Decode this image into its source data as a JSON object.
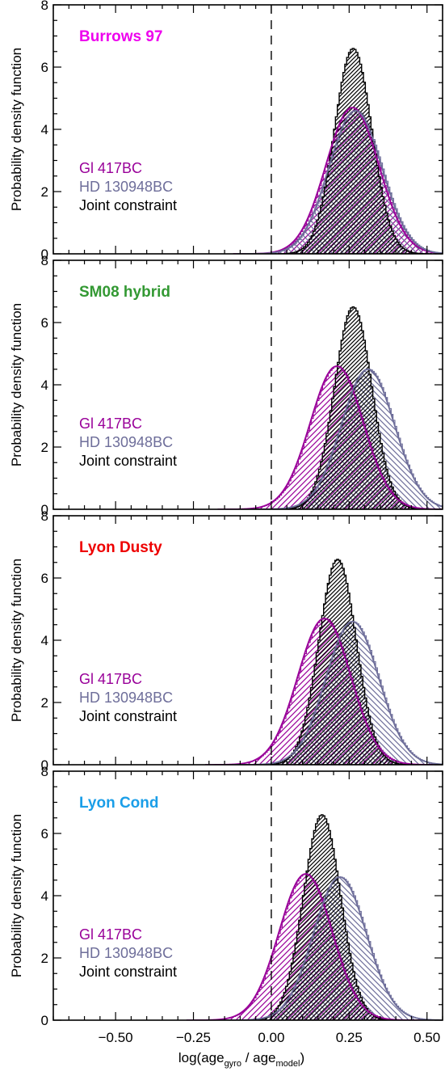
{
  "chart_data": {
    "type": "area",
    "ylabel": "Probability density function",
    "xlabel": {
      "prefix": "log(age",
      "sub1": "gyro",
      "middle": " / age",
      "sub2": "model",
      "suffix": ")"
    },
    "xlim": [
      -0.7,
      0.55
    ],
    "ylim": [
      0,
      8
    ],
    "xticks": [
      -0.5,
      -0.25,
      0.0,
      0.25,
      0.5
    ],
    "xtick_labels": [
      "−0.50",
      "−0.25",
      "0.00",
      "0.25",
      "0.50"
    ],
    "yticks": [
      0,
      2,
      4,
      6,
      8
    ],
    "ytick_labels": [
      "0",
      "2",
      "4",
      "6",
      "8"
    ],
    "reference_line_x": 0,
    "legend": [
      {
        "label": "Gl 417BC",
        "color": "#990099"
      },
      {
        "label": "HD 130948BC",
        "color": "#6e6e9a"
      },
      {
        "label": "Joint constraint",
        "color": "#000000"
      }
    ],
    "panels": [
      {
        "model": "Burrows 97",
        "model_color": "#ee00ee",
        "series": [
          {
            "name": "Gl 417BC",
            "mean": 0.26,
            "sigma": 0.085,
            "peak": 4.7
          },
          {
            "name": "HD 130948BC",
            "mean": 0.27,
            "sigma": 0.085,
            "peak": 4.6
          },
          {
            "name": "Joint constraint",
            "mean": 0.26,
            "sigma": 0.06,
            "peak": 6.6
          }
        ]
      },
      {
        "model": "SM08 hybrid",
        "model_color": "#339933",
        "series": [
          {
            "name": "Gl 417BC",
            "mean": 0.21,
            "sigma": 0.085,
            "peak": 4.6
          },
          {
            "name": "HD 130948BC",
            "mean": 0.31,
            "sigma": 0.085,
            "peak": 4.5
          },
          {
            "name": "Joint constraint",
            "mean": 0.26,
            "sigma": 0.06,
            "peak": 6.5
          }
        ]
      },
      {
        "model": "Lyon Dusty",
        "model_color": "#ee0000",
        "series": [
          {
            "name": "Gl 417BC",
            "mean": 0.17,
            "sigma": 0.085,
            "peak": 4.7
          },
          {
            "name": "HD 130948BC",
            "mean": 0.26,
            "sigma": 0.085,
            "peak": 4.6
          },
          {
            "name": "Joint constraint",
            "mean": 0.21,
            "sigma": 0.06,
            "peak": 6.6
          }
        ]
      },
      {
        "model": "Lyon Cond",
        "model_color": "#1a9ee8",
        "series": [
          {
            "name": "Gl 417BC",
            "mean": 0.11,
            "sigma": 0.085,
            "peak": 4.7
          },
          {
            "name": "HD 130948BC",
            "mean": 0.22,
            "sigma": 0.085,
            "peak": 4.6
          },
          {
            "name": "Joint constraint",
            "mean": 0.16,
            "sigma": 0.06,
            "peak": 6.6
          }
        ]
      }
    ]
  }
}
